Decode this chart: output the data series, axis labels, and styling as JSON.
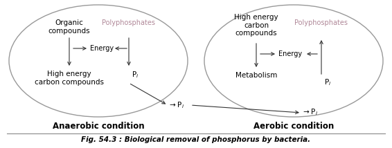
{
  "background_color": "#ffffff",
  "fig_title": "Fig. 54.3 : Biological removal of phosphorus by bacteria.",
  "anaerobic_label": "Anaerobic condition",
  "aerobic_label": "Aerobic condition",
  "text_color": "#000000",
  "polyphosphate_color": "#b08898",
  "arrow_color": "#333333",
  "ellipse_edge_color": "#999999",
  "line_color": "#333333"
}
